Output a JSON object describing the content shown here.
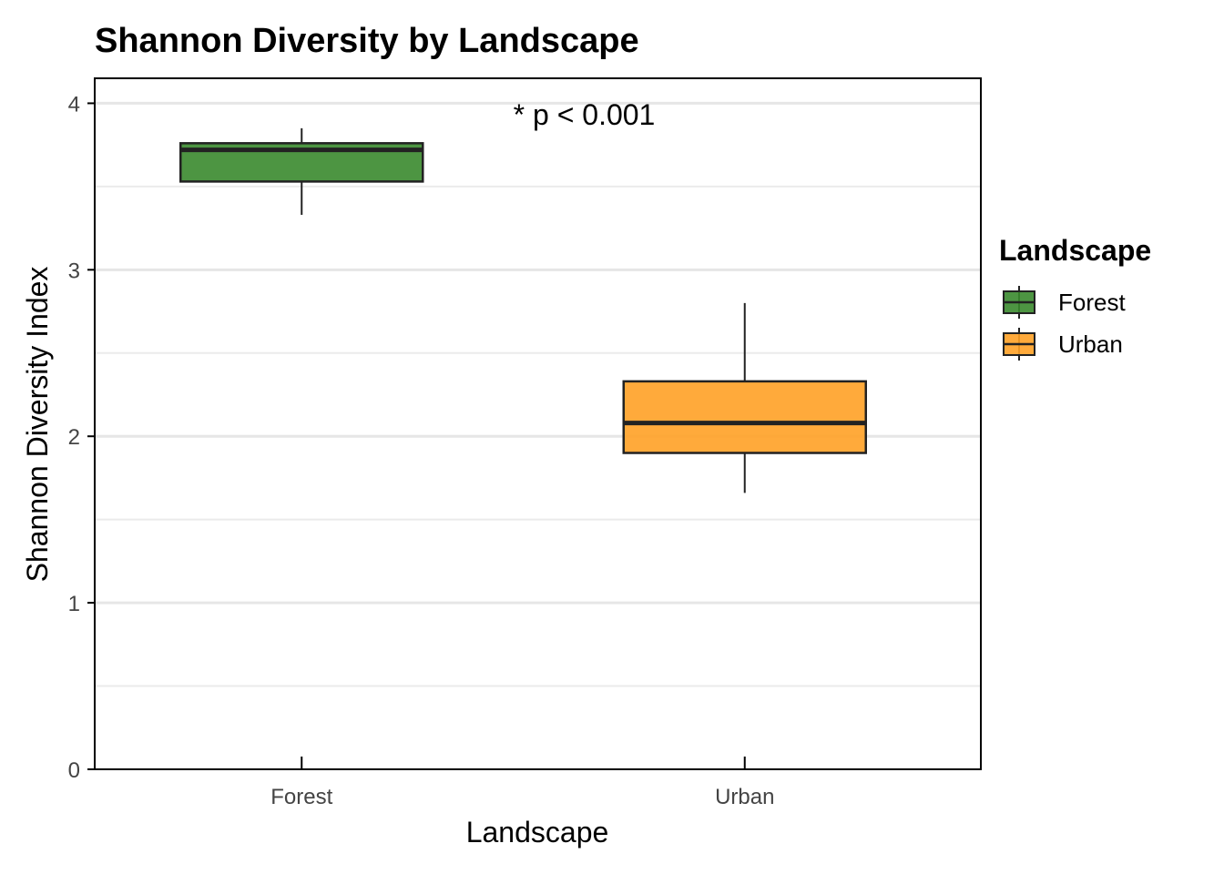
{
  "chart_data": {
    "type": "box",
    "title": "Shannon Diversity by Landscape",
    "xlabel": "Landscape",
    "ylabel": "Shannon Diversity Index",
    "ylim": [
      0,
      4.15
    ],
    "yticks": [
      0,
      1,
      2,
      3,
      4
    ],
    "minor_gridlines": [
      0.5,
      1.5,
      2.5,
      3.5
    ],
    "grid": "horizontal",
    "categories": [
      "Forest",
      "Urban"
    ],
    "boxes": [
      {
        "category": "Forest",
        "whisker_low": 3.33,
        "q1": 3.53,
        "median": 3.72,
        "q3": 3.76,
        "whisker_high": 3.85,
        "color": "#3a8a2e"
      },
      {
        "category": "Urban",
        "whisker_low": 1.66,
        "q1": 1.9,
        "median": 2.08,
        "q3": 2.33,
        "whisker_high": 2.8,
        "color": "#ffa126"
      }
    ],
    "annotation": {
      "text": "* p < 0.001",
      "x": 1.5,
      "y": 3.93
    },
    "legend": {
      "title": "Landscape",
      "position": "right",
      "items": [
        {
          "label": "Forest",
          "color": "#3a8a2e"
        },
        {
          "label": "Urban",
          "color": "#ffa126"
        }
      ]
    }
  }
}
